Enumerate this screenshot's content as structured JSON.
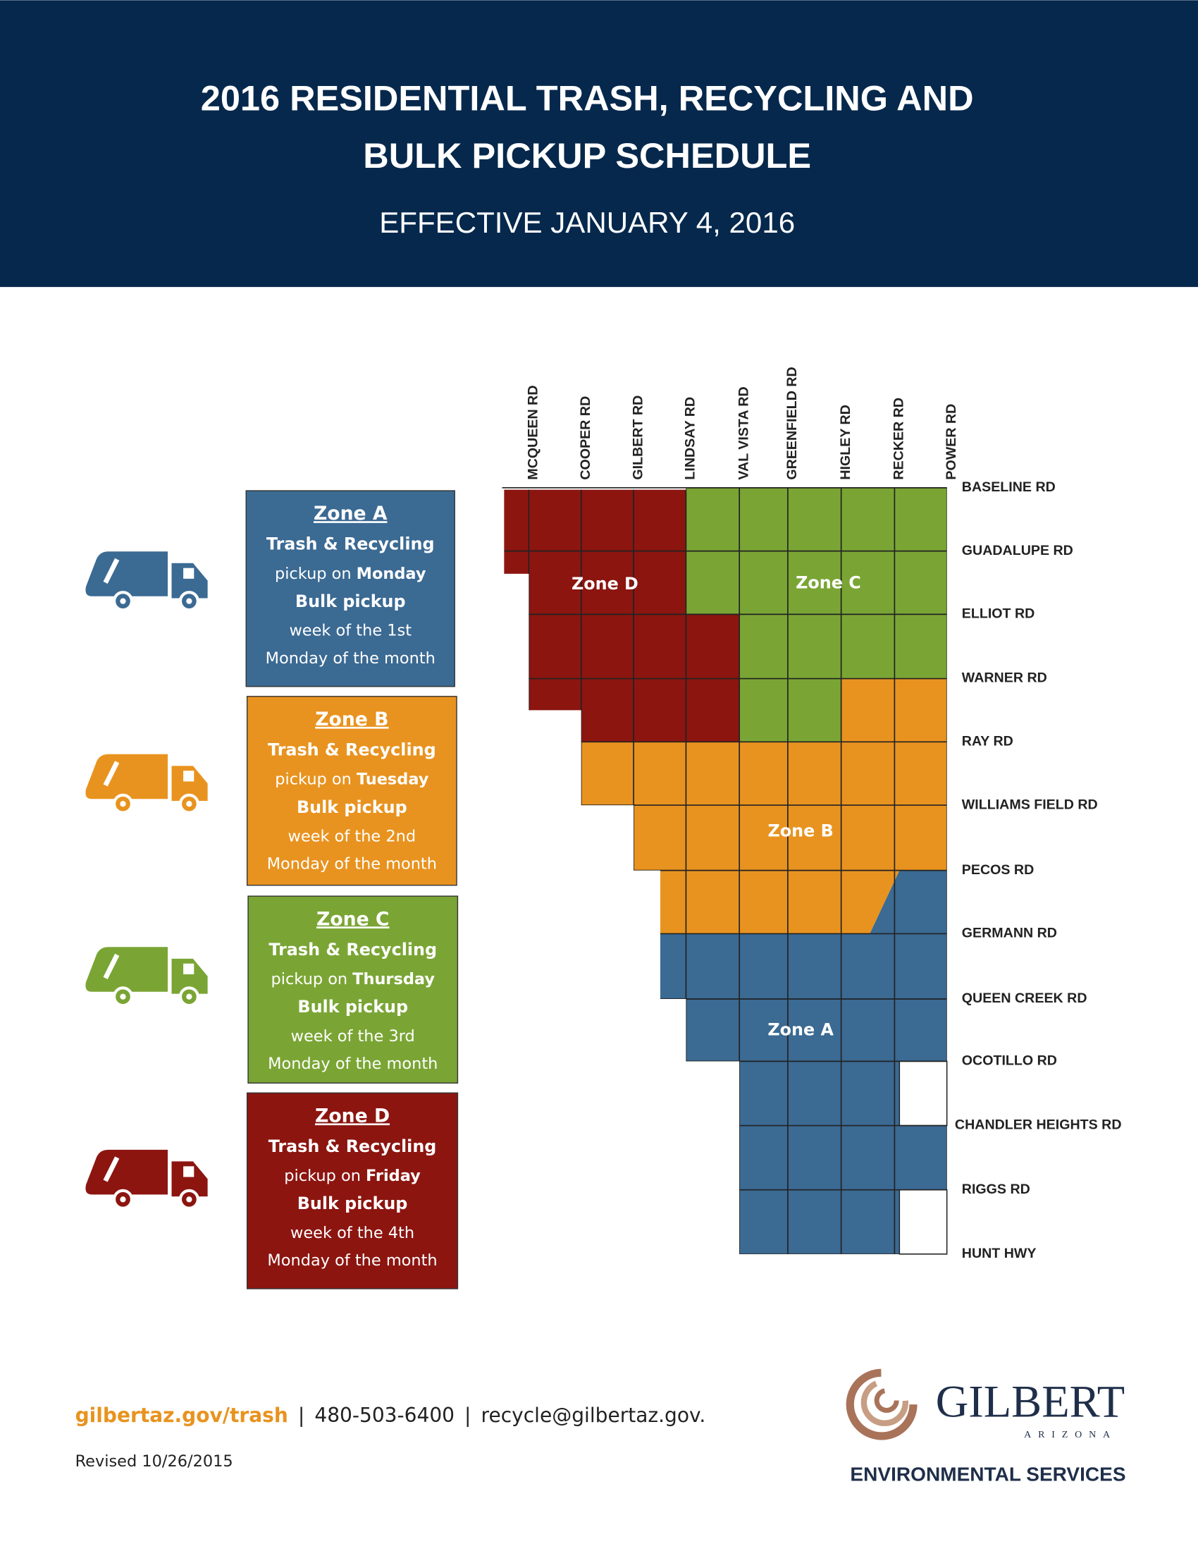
{
  "header": {
    "title_lines": [
      "2016 RESIDENTIAL TRASH, RECYCLING AND",
      "BULK PICKUP SCHEDULE"
    ],
    "effective": "EFFECTIVE JANUARY 4, 2016"
  },
  "zones": [
    {
      "title": "Zone A",
      "service": "Trash & Recycling",
      "pickup": "pickup on",
      "day": "Monday",
      "bulk": "Bulk pickup",
      "week": "week of the 1st",
      "month": "Monday of the month",
      "color": "#3b6a93"
    },
    {
      "title": "Zone B",
      "service": "Trash & Recycling",
      "pickup": "pickup on",
      "day": "Tuesday",
      "bulk": "Bulk pickup",
      "week": "week of the 2nd",
      "month": "Monday of the month",
      "color": "#e8931f"
    },
    {
      "title": "Zone C",
      "service": "Trash & Recycling",
      "pickup": "pickup on",
      "day": "Thursday",
      "bulk": "Bulk pickup",
      "week": "week of the 3rd",
      "month": "Monday of the month",
      "color": "#7aa534"
    },
    {
      "title": "Zone D",
      "service": "Trash & Recycling",
      "pickup": "pickup on",
      "day": "Friday",
      "bulk": "Bulk pickup",
      "week": "week of the 4th",
      "month": "Monday of the month",
      "color": "#8c1510"
    }
  ],
  "map": {
    "north_south_roads": [
      "MCQUEEN RD",
      "COOPER RD",
      "GILBERT RD",
      "LINDSAY RD",
      "VAL VISTA RD",
      "GREENFIELD RD",
      "HIGLEY RD",
      "RECKER RD",
      "POWER RD"
    ],
    "east_west_roads": [
      "BASELINE RD",
      "GUADALUPE RD",
      "ELLIOT RD",
      "WARNER RD",
      "RAY RD",
      "WILLIAMS FIELD RD",
      "PECOS RD",
      "GERMANN RD",
      "QUEEN CREEK RD",
      "OCOTILLO RD",
      "CHANDLER HEIGHTS RD",
      "RIGGS RD",
      "HUNT HWY"
    ],
    "zone_labels": [
      "Zone D",
      "Zone C",
      "Zone B",
      "Zone A"
    ]
  },
  "footer": {
    "website": "gilbertaz.gov/trash",
    "separator": "|",
    "phone": "480-503-6400",
    "email": "recycle@gilbertaz.gov.",
    "revised": "Revised 10/26/2015",
    "logo_name": "GILBERT",
    "logo_state": "ARIZONA",
    "department": "ENVIRONMENTAL SERVICES"
  }
}
